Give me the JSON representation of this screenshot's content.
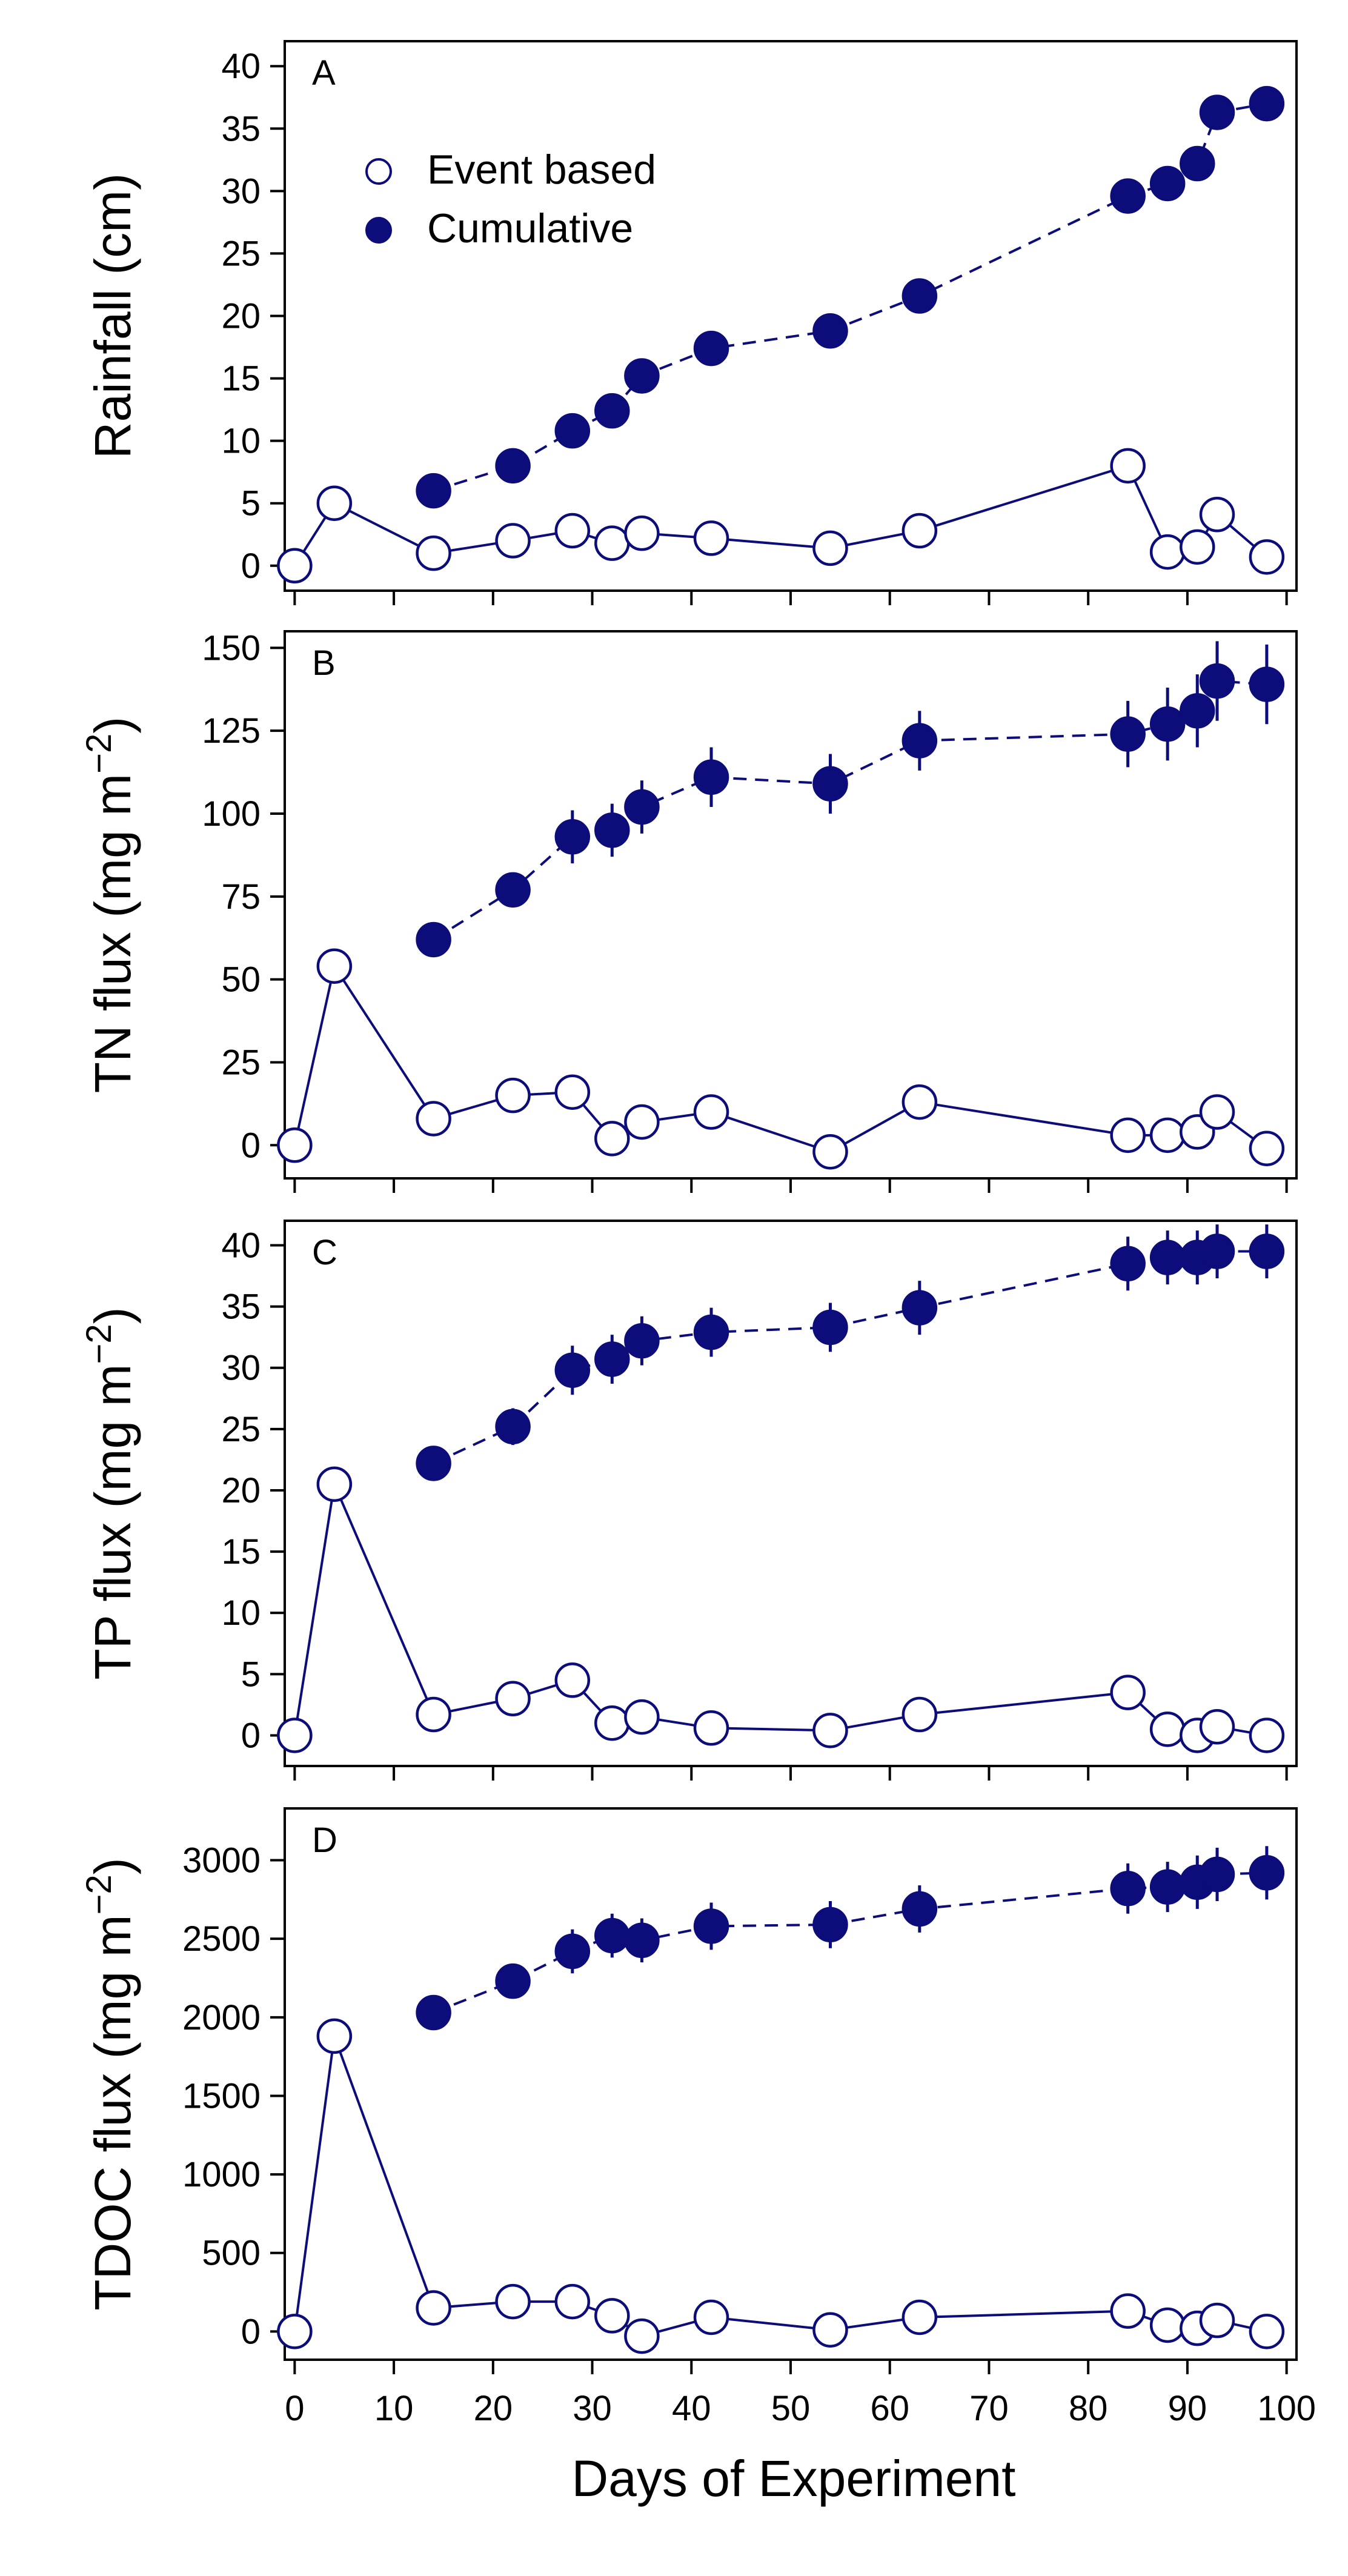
{
  "figure": {
    "xlabel": "Days of Experiment",
    "x_ticks": [
      0,
      10,
      20,
      30,
      40,
      50,
      60,
      70,
      80,
      90,
      100
    ],
    "xlim": [
      -1,
      101
    ],
    "legend": {
      "event_label": "Event based",
      "cumulative_label": "Cumulative",
      "position": "top-left"
    },
    "colors": {
      "series": "#0c0c7a",
      "axis": "#000000"
    }
  },
  "chart_data": [
    {
      "type": "line",
      "panel_label": "A",
      "ylabel": {
        "main": "Rainfall (cm)",
        "sup": ""
      },
      "ylim": [
        -2,
        42
      ],
      "yticks": [
        0,
        5,
        10,
        15,
        20,
        25,
        30,
        35,
        40
      ],
      "x": [
        0,
        4,
        14,
        22,
        28,
        32,
        35,
        42,
        54,
        63,
        84,
        88,
        91,
        93,
        98
      ],
      "series": [
        {
          "name": "Event based",
          "style": "open",
          "line": "solid",
          "values": [
            0,
            5,
            1,
            2,
            2.8,
            1.8,
            2.6,
            2.2,
            1.4,
            2.8,
            8,
            1.1,
            1.5,
            4.1,
            0.7
          ],
          "err": [
            0,
            0,
            0,
            0,
            0,
            0,
            0,
            0,
            0,
            0,
            0,
            0,
            0,
            0,
            0
          ]
        },
        {
          "name": "Cumulative",
          "style": "filled",
          "line": "dashed",
          "values": [
            null,
            null,
            6,
            8,
            10.8,
            12.4,
            15.2,
            17.4,
            18.8,
            21.6,
            29.6,
            30.6,
            32.2,
            36.3,
            37
          ],
          "err": [
            0,
            0,
            0,
            0,
            0,
            0,
            0,
            0,
            0,
            0,
            0,
            0,
            0,
            0,
            0
          ]
        }
      ]
    },
    {
      "type": "line",
      "panel_label": "B",
      "ylabel": {
        "main": "TN flux (mg m",
        "sup": "−2"
      },
      "ylim": [
        -10,
        155
      ],
      "yticks": [
        0,
        25,
        50,
        75,
        100,
        125,
        150
      ],
      "x": [
        0,
        4,
        14,
        22,
        28,
        32,
        35,
        42,
        54,
        63,
        84,
        88,
        91,
        93,
        98
      ],
      "series": [
        {
          "name": "Event based",
          "style": "open",
          "line": "solid",
          "values": [
            0,
            54,
            8,
            15,
            16,
            2,
            7,
            10,
            -2,
            13,
            3,
            3,
            4,
            10,
            -1
          ],
          "err": [
            0,
            0,
            0,
            0,
            0,
            0,
            0,
            0,
            0,
            0,
            0,
            0,
            0,
            0,
            0
          ]
        },
        {
          "name": "Cumulative",
          "style": "filled",
          "line": "dashed",
          "values": [
            null,
            null,
            62,
            77,
            93,
            95,
            102,
            111,
            109,
            122,
            124,
            127,
            131,
            140,
            139
          ],
          "err": [
            0,
            0,
            4,
            5,
            8,
            8,
            8,
            9,
            9,
            9,
            10,
            11,
            11,
            12,
            12
          ]
        }
      ]
    },
    {
      "type": "line",
      "panel_label": "C",
      "ylabel": {
        "main": "TP flux (mg m",
        "sup": "−2"
      },
      "ylim": [
        -2.5,
        42
      ],
      "yticks": [
        0,
        5,
        10,
        15,
        20,
        25,
        30,
        35,
        40
      ],
      "x": [
        0,
        4,
        14,
        22,
        28,
        32,
        35,
        42,
        54,
        63,
        84,
        88,
        91,
        93,
        98
      ],
      "series": [
        {
          "name": "Event based",
          "style": "open",
          "line": "solid",
          "values": [
            0,
            20.5,
            1.7,
            3,
            4.5,
            1,
            1.5,
            0.6,
            0.4,
            1.7,
            3.5,
            0.5,
            0,
            0.7,
            0
          ],
          "err": [
            0,
            0,
            0,
            0,
            0,
            0,
            0,
            0,
            0,
            0,
            0,
            0,
            0,
            0,
            0
          ]
        },
        {
          "name": "Cumulative",
          "style": "filled",
          "line": "dashed",
          "values": [
            null,
            null,
            22.2,
            25.2,
            29.8,
            30.7,
            32.2,
            32.9,
            33.3,
            34.9,
            38.5,
            39,
            39,
            39.5,
            39.5
          ],
          "err": [
            0,
            0,
            1.2,
            1.5,
            2,
            2,
            2,
            2,
            2,
            2.2,
            2.2,
            2.2,
            2.2,
            2.2,
            2.2
          ]
        }
      ]
    },
    {
      "type": "line",
      "panel_label": "D",
      "ylabel": {
        "main": "TDOC flux (mg m",
        "sup": "−2"
      },
      "ylim": [
        -180,
        3330
      ],
      "yticks": [
        0,
        500,
        1000,
        1500,
        2000,
        2500,
        3000
      ],
      "x": [
        0,
        4,
        14,
        22,
        28,
        32,
        35,
        42,
        54,
        63,
        84,
        88,
        91,
        93,
        98
      ],
      "series": [
        {
          "name": "Event based",
          "style": "open",
          "line": "solid",
          "values": [
            0,
            1880,
            150,
            190,
            190,
            100,
            -30,
            90,
            10,
            90,
            130,
            40,
            20,
            70,
            0
          ],
          "err": [
            0,
            0,
            0,
            0,
            0,
            0,
            0,
            0,
            0,
            0,
            0,
            0,
            0,
            0,
            0
          ]
        },
        {
          "name": "Cumulative",
          "style": "filled",
          "line": "dashed",
          "values": [
            null,
            null,
            2030,
            2230,
            2420,
            2520,
            2490,
            2580,
            2590,
            2690,
            2820,
            2830,
            2860,
            2910,
            2920
          ],
          "err": [
            0,
            0,
            80,
            110,
            140,
            140,
            140,
            150,
            150,
            150,
            160,
            160,
            170,
            170,
            170
          ]
        }
      ]
    }
  ]
}
